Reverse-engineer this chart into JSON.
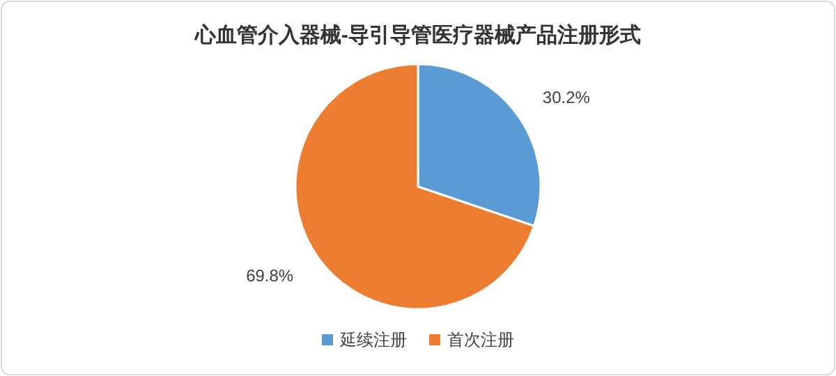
{
  "chart_data": {
    "type": "pie",
    "title": "心血管介入器械-导引导管医疗器械产品注册形式",
    "categories": [
      "延续注册",
      "首次注册"
    ],
    "values": [
      30.2,
      69.8
    ],
    "colors": [
      "#5b9bd5",
      "#ed7d31"
    ],
    "value_labels": [
      "30.2%",
      "69.8%"
    ],
    "legend": "bottom"
  }
}
